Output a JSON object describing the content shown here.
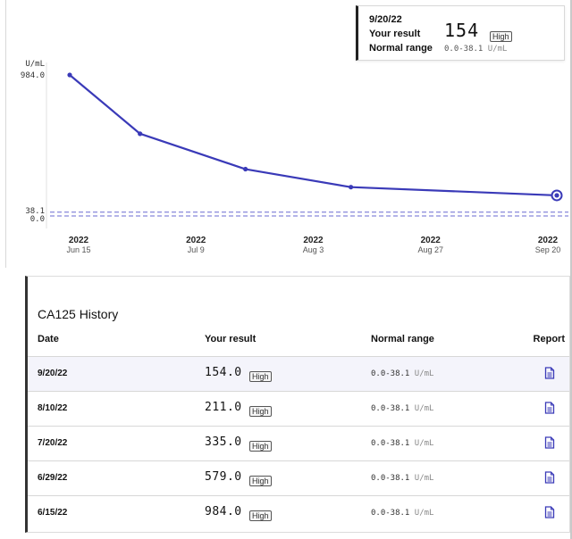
{
  "tooltip": {
    "date": "9/20/22",
    "result_label": "Your result",
    "range_label": "Normal range",
    "value": "154",
    "flag": "High",
    "range": "0.0-38.1",
    "unit": "U/mL"
  },
  "chart_data": {
    "type": "line",
    "y_unit": "U/mL",
    "y_ticks": [
      "984.0",
      "38.1",
      "0.0"
    ],
    "reference_range": [
      0.0,
      38.1
    ],
    "x_ticks": [
      {
        "year": "2022",
        "date": "Jun 15"
      },
      {
        "year": "2022",
        "date": "Jul 9"
      },
      {
        "year": "2022",
        "date": "Aug 3"
      },
      {
        "year": "2022",
        "date": "Aug 27"
      },
      {
        "year": "2022",
        "date": "Sep 20"
      }
    ],
    "series": [
      {
        "x": [
          "2022-06-15",
          "2022-06-29",
          "2022-07-20",
          "2022-08-10",
          "2022-09-20"
        ],
        "values": [
          984.0,
          579.0,
          335.0,
          211.0,
          154.0
        ]
      }
    ],
    "highlighted_point": "2022-09-20",
    "line_color": "#3a3ab8",
    "range_line_color": "#6a6ad0"
  },
  "history": {
    "title": "CA125 History",
    "columns": {
      "date": "Date",
      "result": "Your result",
      "range": "Normal range",
      "report": "Report"
    },
    "rows": [
      {
        "date": "9/20/22",
        "value": "154.0",
        "flag": "High",
        "range": "0.0-38.1",
        "unit": "U/mL",
        "report": "document-icon"
      },
      {
        "date": "8/10/22",
        "value": "211.0",
        "flag": "High",
        "range": "0.0-38.1",
        "unit": "U/mL",
        "report": "document-icon"
      },
      {
        "date": "7/20/22",
        "value": "335.0",
        "flag": "High",
        "range": "0.0-38.1",
        "unit": "U/mL",
        "report": "document-icon"
      },
      {
        "date": "6/29/22",
        "value": "579.0",
        "flag": "High",
        "range": "0.0-38.1",
        "unit": "U/mL",
        "report": "document-icon"
      },
      {
        "date": "6/15/22",
        "value": "984.0",
        "flag": "High",
        "range": "0.0-38.1",
        "unit": "U/mL",
        "report": "document-icon"
      }
    ],
    "selected_row": 0,
    "icon_color": "#3a3ab8"
  }
}
